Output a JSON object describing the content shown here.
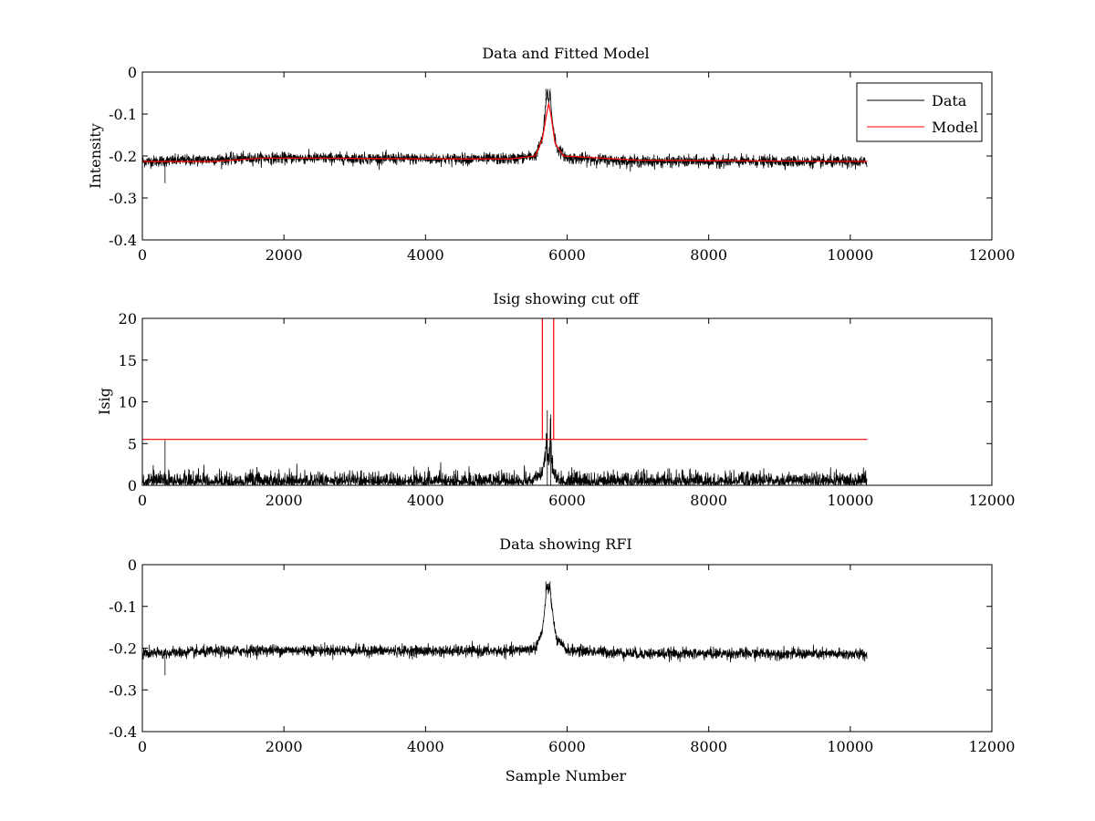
{
  "chart_data": [
    {
      "type": "line",
      "title": "Data and Fitted Model",
      "xlabel": "",
      "ylabel": "Intensity",
      "xlim": [
        0,
        12000
      ],
      "ylim": [
        -0.4,
        0
      ],
      "xticks": [
        "0",
        "2000",
        "4000",
        "6000",
        "8000",
        "10000",
        "12000"
      ],
      "yticks": [
        "-0.4",
        "-0.3",
        "-0.2",
        "-0.1",
        "0"
      ],
      "grid": false,
      "legend": {
        "position": "top-right",
        "entries": [
          "Data",
          "Model"
        ]
      },
      "series": [
        {
          "name": "Data",
          "color": "#000000",
          "kind": "noisy",
          "x_range": [
            0,
            10240
          ],
          "noise_amplitude": 0.012,
          "baseline": [
            [
              0,
              -0.213
            ],
            [
              1700,
              -0.205
            ],
            [
              2400,
              -0.205
            ],
            [
              4000,
              -0.207
            ],
            [
              5200,
              -0.207
            ],
            [
              5550,
              -0.2
            ],
            [
              5650,
              -0.16
            ],
            [
              5700,
              -0.08
            ],
            [
              5720,
              -0.045
            ],
            [
              5740,
              -0.07
            ],
            [
              5760,
              -0.045
            ],
            [
              5780,
              -0.1
            ],
            [
              5850,
              -0.18
            ],
            [
              6000,
              -0.205
            ],
            [
              7000,
              -0.213
            ],
            [
              9000,
              -0.213
            ],
            [
              10240,
              -0.215
            ]
          ],
          "spikes": [
            [
              320,
              -0.265
            ],
            [
              5700,
              -0.04
            ],
            [
              5760,
              -0.04
            ]
          ]
        },
        {
          "name": "Model",
          "color": "#ff0000",
          "kind": "smooth",
          "points": [
            [
              0,
              -0.213
            ],
            [
              1000,
              -0.213
            ],
            [
              1700,
              -0.205
            ],
            [
              2400,
              -0.205
            ],
            [
              4000,
              -0.207
            ],
            [
              5200,
              -0.207
            ],
            [
              5550,
              -0.2
            ],
            [
              5650,
              -0.16
            ],
            [
              5710,
              -0.1
            ],
            [
              5740,
              -0.075
            ],
            [
              5770,
              -0.1
            ],
            [
              5830,
              -0.17
            ],
            [
              5950,
              -0.2
            ],
            [
              7000,
              -0.21
            ],
            [
              9000,
              -0.212
            ],
            [
              10240,
              -0.213
            ]
          ]
        }
      ]
    },
    {
      "type": "line",
      "title": "Isig showing cut off",
      "xlabel": "",
      "ylabel": "Isig",
      "xlim": [
        0,
        12000
      ],
      "ylim": [
        0,
        20
      ],
      "xticks": [
        "0",
        "2000",
        "4000",
        "6000",
        "8000",
        "10000",
        "12000"
      ],
      "yticks": [
        "0",
        "5",
        "10",
        "15",
        "20"
      ],
      "grid": false,
      "series": [
        {
          "color": "#000000",
          "kind": "noisy-positive",
          "x_range": [
            0,
            10240
          ],
          "noise_amplitude": 1.2,
          "baseline": [
            [
              0,
              0.6
            ],
            [
              5500,
              0.6
            ],
            [
              5650,
              2
            ],
            [
              5700,
              6
            ],
            [
              5740,
              3
            ],
            [
              5760,
              7
            ],
            [
              5800,
              2
            ],
            [
              5900,
              0.6
            ],
            [
              10240,
              0.6
            ]
          ],
          "spikes": [
            [
              320,
              5.4
            ],
            [
              5720,
              9
            ],
            [
              5770,
              8.5
            ]
          ]
        },
        {
          "color": "#ff0000",
          "kind": "cutoff",
          "points": [
            [
              0,
              5.5
            ],
            [
              5650,
              5.5
            ],
            [
              5650,
              20
            ],
            [
              5650,
              5.5
            ],
            [
              5810,
              5.5
            ],
            [
              5810,
              20
            ],
            [
              5810,
              5.5
            ],
            [
              10240,
              5.5
            ]
          ]
        }
      ]
    },
    {
      "type": "line",
      "title": "Data showing RFI",
      "xlabel": "Sample Number",
      "ylabel": "",
      "xlim": [
        0,
        12000
      ],
      "ylim": [
        -0.4,
        0
      ],
      "xticks": [
        "0",
        "2000",
        "4000",
        "6000",
        "8000",
        "10000",
        "12000"
      ],
      "yticks": [
        "-0.4",
        "-0.3",
        "-0.2",
        "-0.1",
        "0"
      ],
      "grid": false,
      "series": [
        {
          "color": "#000000",
          "kind": "noisy",
          "x_range": [
            0,
            10240
          ],
          "noise_amplitude": 0.012,
          "baseline": [
            [
              0,
              -0.213
            ],
            [
              1700,
              -0.205
            ],
            [
              2400,
              -0.205
            ],
            [
              4000,
              -0.207
            ],
            [
              5200,
              -0.207
            ],
            [
              5550,
              -0.2
            ],
            [
              5650,
              -0.16
            ],
            [
              5700,
              -0.08
            ],
            [
              5720,
              -0.045
            ],
            [
              5740,
              -0.07
            ],
            [
              5760,
              -0.045
            ],
            [
              5780,
              -0.1
            ],
            [
              5850,
              -0.18
            ],
            [
              6000,
              -0.205
            ],
            [
              7000,
              -0.213
            ],
            [
              9000,
              -0.213
            ],
            [
              10240,
              -0.215
            ]
          ],
          "spikes": [
            [
              320,
              -0.265
            ],
            [
              5700,
              -0.04
            ],
            [
              5760,
              -0.04
            ]
          ]
        }
      ]
    }
  ]
}
